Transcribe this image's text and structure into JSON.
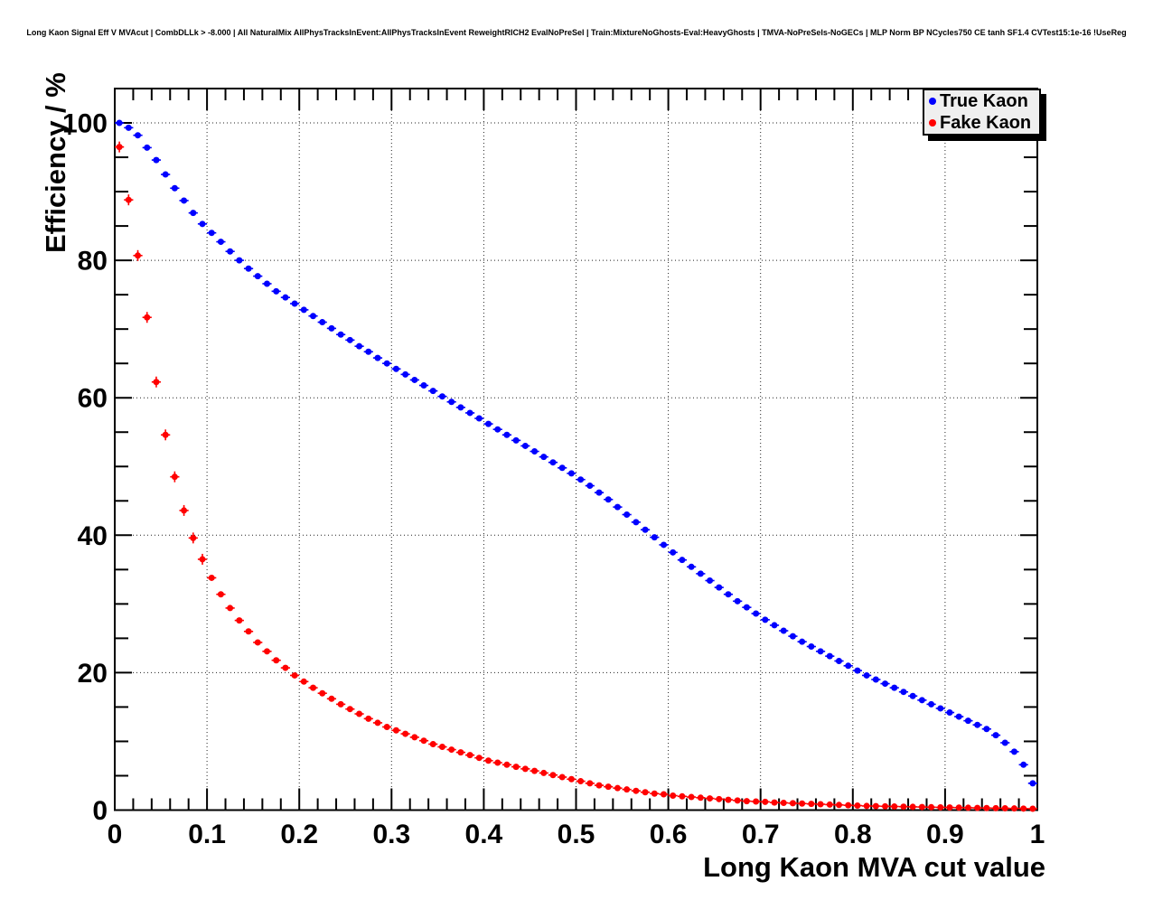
{
  "canvas": {
    "title": "Long Kaon Signal Eff V MVAcut | CombDLLk > -8.000 | All NaturalMix AllPhysTracksInEvent:AllPhysTracksInEvent ReweightRICH2 EvalNoPreSel | Train:MixtureNoGhosts-Eval:HeavyGhosts | TMVA-NoPreSels-NoGECs | MLP Norm BP NCycles750 CE tanh SF1.4 CVTest15:1e-16 !UseReg"
  },
  "axes": {
    "x_label": "Long Kaon MVA cut value",
    "y_label": "Efficiency / %",
    "x_tick_labels": [
      "0",
      "0.1",
      "0.2",
      "0.3",
      "0.4",
      "0.5",
      "0.6",
      "0.7",
      "0.8",
      "0.9",
      "1"
    ],
    "x_tick_values": [
      0,
      0.1,
      0.2,
      0.3,
      0.4,
      0.5,
      0.6,
      0.7,
      0.8,
      0.9,
      1
    ],
    "y_tick_labels": [
      "0",
      "20",
      "40",
      "60",
      "80",
      "100"
    ],
    "y_tick_values": [
      0,
      20,
      40,
      60,
      80,
      100
    ]
  },
  "legend": {
    "entries": [
      {
        "label": "True Kaon",
        "color": "#0000ff"
      },
      {
        "label": "Fake Kaon",
        "color": "#ff0000"
      }
    ]
  },
  "chart_data": {
    "type": "scatter",
    "title": "Long Kaon Signal Eff V MVAcut",
    "xlabel": "Long Kaon MVA cut value",
    "ylabel": "Efficiency / %",
    "xlim": [
      0,
      1
    ],
    "ylim": [
      0,
      105
    ],
    "grid": true,
    "legend_position": "top-right",
    "marker": "filled-circle-with-error-bars",
    "x": [
      0.005,
      0.015,
      0.025,
      0.035,
      0.045,
      0.055,
      0.065,
      0.075,
      0.085,
      0.095,
      0.105,
      0.115,
      0.125,
      0.135,
      0.145,
      0.155,
      0.165,
      0.175,
      0.185,
      0.195,
      0.205,
      0.215,
      0.225,
      0.235,
      0.245,
      0.255,
      0.265,
      0.275,
      0.285,
      0.295,
      0.305,
      0.315,
      0.325,
      0.335,
      0.345,
      0.355,
      0.365,
      0.375,
      0.385,
      0.395,
      0.405,
      0.415,
      0.425,
      0.435,
      0.445,
      0.455,
      0.465,
      0.475,
      0.485,
      0.495,
      0.505,
      0.515,
      0.525,
      0.535,
      0.545,
      0.555,
      0.565,
      0.575,
      0.585,
      0.595,
      0.605,
      0.615,
      0.625,
      0.635,
      0.645,
      0.655,
      0.665,
      0.675,
      0.685,
      0.695,
      0.705,
      0.715,
      0.725,
      0.735,
      0.745,
      0.755,
      0.765,
      0.775,
      0.785,
      0.795,
      0.805,
      0.815,
      0.825,
      0.835,
      0.845,
      0.855,
      0.865,
      0.875,
      0.885,
      0.895,
      0.905,
      0.915,
      0.925,
      0.935,
      0.945,
      0.955,
      0.965,
      0.975,
      0.985,
      0.995
    ],
    "series": [
      {
        "name": "True Kaon",
        "color": "#0000ff",
        "y": [
          100.0,
          99.3,
          98.2,
          96.4,
          94.6,
          92.5,
          90.5,
          88.7,
          86.9,
          85.3,
          84.0,
          82.7,
          81.3,
          80.0,
          78.8,
          77.7,
          76.6,
          75.5,
          74.6,
          73.7,
          72.8,
          71.9,
          71.0,
          70.1,
          69.2,
          68.4,
          67.5,
          66.7,
          65.8,
          65.0,
          64.2,
          63.4,
          62.6,
          61.8,
          61.0,
          60.2,
          59.4,
          58.6,
          57.8,
          57.0,
          56.2,
          55.4,
          54.6,
          53.8,
          53.0,
          52.2,
          51.4,
          50.6,
          49.8,
          49.0,
          48.1,
          47.2,
          46.2,
          45.2,
          44.1,
          43.0,
          41.9,
          40.8,
          39.7,
          38.6,
          37.5,
          36.4,
          35.4,
          34.4,
          33.4,
          32.4,
          31.4,
          30.4,
          29.5,
          28.6,
          27.7,
          26.9,
          26.1,
          25.3,
          24.5,
          23.8,
          23.1,
          22.4,
          21.7,
          21.0,
          20.3,
          19.6,
          19.0,
          18.4,
          17.8,
          17.2,
          16.6,
          16.0,
          15.4,
          14.8,
          14.2,
          13.6,
          13.0,
          12.4,
          11.8,
          10.9,
          9.8,
          8.5,
          6.6,
          3.9
        ]
      },
      {
        "name": "Fake Kaon",
        "color": "#ff0000",
        "y": [
          96.5,
          88.8,
          80.7,
          71.7,
          62.3,
          54.6,
          48.5,
          43.6,
          39.6,
          36.5,
          33.8,
          31.4,
          29.4,
          27.6,
          26.0,
          24.4,
          23.1,
          21.8,
          20.7,
          19.6,
          18.7,
          17.8,
          17.0,
          16.2,
          15.4,
          14.7,
          14.0,
          13.3,
          12.7,
          12.1,
          11.6,
          11.1,
          10.6,
          10.1,
          9.6,
          9.2,
          8.8,
          8.4,
          8.0,
          7.6,
          7.2,
          6.9,
          6.6,
          6.3,
          6.0,
          5.7,
          5.4,
          5.1,
          4.8,
          4.5,
          4.2,
          3.9,
          3.6,
          3.4,
          3.2,
          3.0,
          2.8,
          2.6,
          2.4,
          2.3,
          2.1,
          2.0,
          1.9,
          1.8,
          1.7,
          1.6,
          1.5,
          1.4,
          1.3,
          1.25,
          1.2,
          1.1,
          1.05,
          1.0,
          0.95,
          0.9,
          0.85,
          0.8,
          0.75,
          0.7,
          0.65,
          0.6,
          0.58,
          0.55,
          0.52,
          0.5,
          0.47,
          0.45,
          0.42,
          0.4,
          0.38,
          0.36,
          0.34,
          0.32,
          0.3,
          0.28,
          0.26,
          0.24,
          0.22,
          0.2
        ]
      }
    ]
  }
}
